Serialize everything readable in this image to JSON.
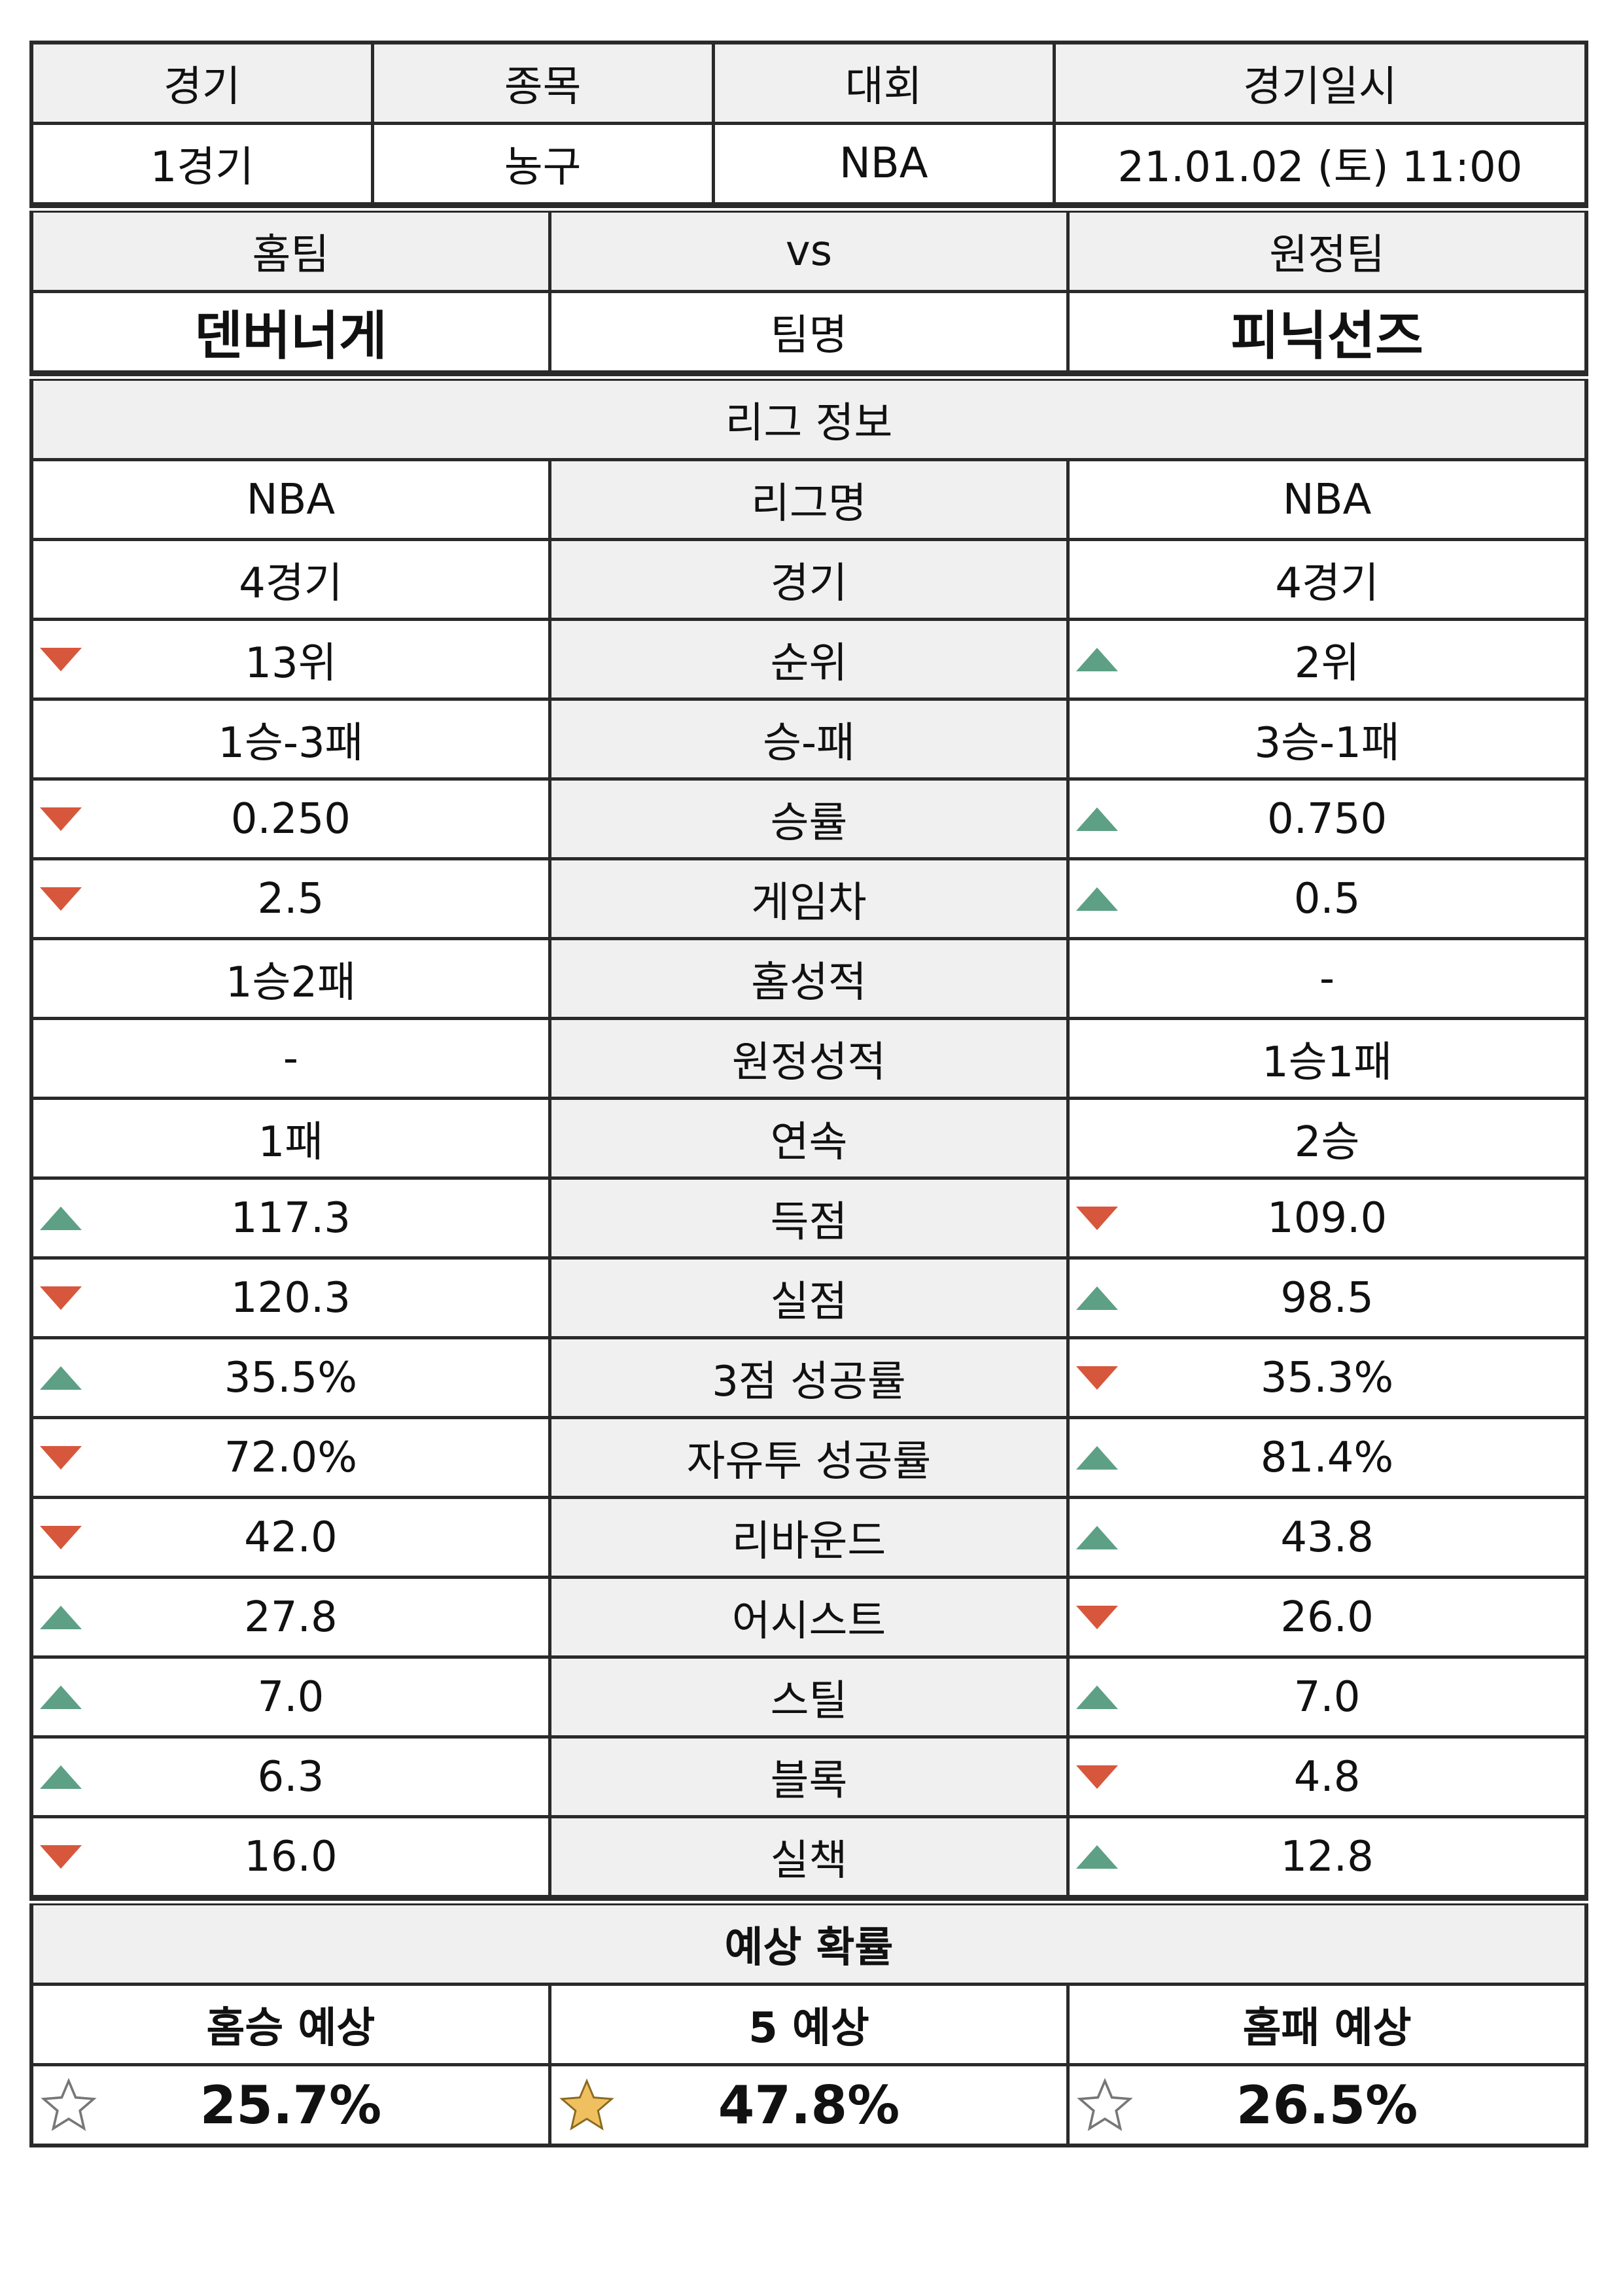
{
  "match_info": {
    "headers": [
      "경기",
      "종목",
      "대회",
      "경기일시"
    ],
    "values": [
      "1경기",
      "농구",
      "NBA",
      "21.01.02 (토) 11:00"
    ]
  },
  "teams": {
    "home_label": "홈팀",
    "vs_label": "vs",
    "away_label": "원정팀",
    "home_name": "덴버너게",
    "center_label": "팀명",
    "away_name": "피닉선즈"
  },
  "league": {
    "title": "리그 정보",
    "rows": [
      {
        "home": "NBA",
        "label": "리그명",
        "away": "NBA",
        "home_trend": "",
        "away_trend": ""
      },
      {
        "home": "4경기",
        "label": "경기",
        "away": "4경기",
        "home_trend": "",
        "away_trend": ""
      },
      {
        "home": "13위",
        "label": "순위",
        "away": "2위",
        "home_trend": "down",
        "away_trend": "up"
      },
      {
        "home": "1승-3패",
        "label": "승-패",
        "away": "3승-1패",
        "home_trend": "",
        "away_trend": ""
      },
      {
        "home": "0.250",
        "label": "승률",
        "away": "0.750",
        "home_trend": "down",
        "away_trend": "up"
      },
      {
        "home": "2.5",
        "label": "게임차",
        "away": "0.5",
        "home_trend": "down",
        "away_trend": "up"
      },
      {
        "home": "1승2패",
        "label": "홈성적",
        "away": "-",
        "home_trend": "",
        "away_trend": ""
      },
      {
        "home": "-",
        "label": "원정성적",
        "away": "1승1패",
        "home_trend": "",
        "away_trend": ""
      },
      {
        "home": "1패",
        "label": "연속",
        "away": "2승",
        "home_trend": "",
        "away_trend": ""
      },
      {
        "home": "117.3",
        "label": "득점",
        "away": "109.0",
        "home_trend": "up",
        "away_trend": "down"
      },
      {
        "home": "120.3",
        "label": "실점",
        "away": "98.5",
        "home_trend": "down",
        "away_trend": "up"
      },
      {
        "home": "35.5%",
        "label": "3점 성공률",
        "away": "35.3%",
        "home_trend": "up",
        "away_trend": "down"
      },
      {
        "home": "72.0%",
        "label": "자유투 성공률",
        "away": "81.4%",
        "home_trend": "down",
        "away_trend": "up"
      },
      {
        "home": "42.0",
        "label": "리바운드",
        "away": "43.8",
        "home_trend": "down",
        "away_trend": "up"
      },
      {
        "home": "27.8",
        "label": "어시스트",
        "away": "26.0",
        "home_trend": "up",
        "away_trend": "down"
      },
      {
        "home": "7.0",
        "label": "스틸",
        "away": "7.0",
        "home_trend": "up",
        "away_trend": "up"
      },
      {
        "home": "6.3",
        "label": "블록",
        "away": "4.8",
        "home_trend": "up",
        "away_trend": "down"
      },
      {
        "home": "16.0",
        "label": "실책",
        "away": "12.8",
        "home_trend": "down",
        "away_trend": "up"
      }
    ]
  },
  "prediction": {
    "title": "예상 확률",
    "labels": [
      "홈승 예상",
      "5 예상",
      "홈패 예상"
    ],
    "values": [
      "25.7%",
      "47.8%",
      "26.5%"
    ],
    "stars": [
      "empty",
      "filled",
      "empty"
    ]
  },
  "colors": {
    "trend_up": "#5da085",
    "trend_down": "#d7573c",
    "star_filled": "#f0c060",
    "header_bg": "#f0f0f0"
  }
}
